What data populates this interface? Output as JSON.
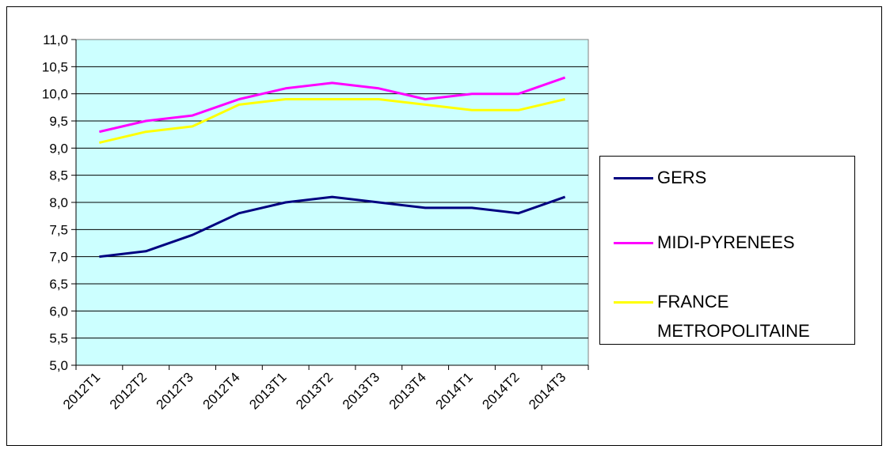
{
  "chart_data": {
    "type": "line",
    "title": "",
    "xlabel": "",
    "ylabel": "",
    "categories": [
      "2012T1",
      "2012T2",
      "2012T3",
      "2012T4",
      "2013T1",
      "2013T2",
      "2013T3",
      "2013T4",
      "2014T1",
      "2014T2",
      "2014T3"
    ],
    "y_tick_labels": [
      "5,0",
      "5,5",
      "6,0",
      "6,5",
      "7,0",
      "7,5",
      "8,0",
      "8,5",
      "9,0",
      "9,5",
      "10,0",
      "10,5",
      "11,0"
    ],
    "ylim": [
      5.0,
      11.0
    ],
    "grid": true,
    "plot_background": "#ccffff",
    "legend_position": "right",
    "series": [
      {
        "name": "GERS",
        "color": "#000080",
        "values": [
          7.0,
          7.1,
          7.4,
          7.8,
          8.0,
          8.1,
          8.0,
          7.9,
          7.9,
          7.8,
          8.1
        ]
      },
      {
        "name": "MIDI-PYRENEES",
        "color": "#ff00ff",
        "values": [
          9.3,
          9.5,
          9.6,
          9.9,
          10.1,
          10.2,
          10.1,
          9.9,
          10.0,
          10.0,
          10.3
        ]
      },
      {
        "name": "FRANCE METROPOLITAINE",
        "color": "#ffff00",
        "values": [
          9.1,
          9.3,
          9.4,
          9.8,
          9.9,
          9.9,
          9.9,
          9.8,
          9.7,
          9.7,
          9.9
        ]
      }
    ]
  },
  "legend": {
    "items": [
      {
        "label": "GERS",
        "color": "#000080"
      },
      {
        "label": "MIDI-PYRENEES",
        "color": "#ff00ff"
      },
      {
        "label_line1": "FRANCE",
        "label_line2": "METROPOLITAINE",
        "color": "#ffff00"
      }
    ]
  }
}
